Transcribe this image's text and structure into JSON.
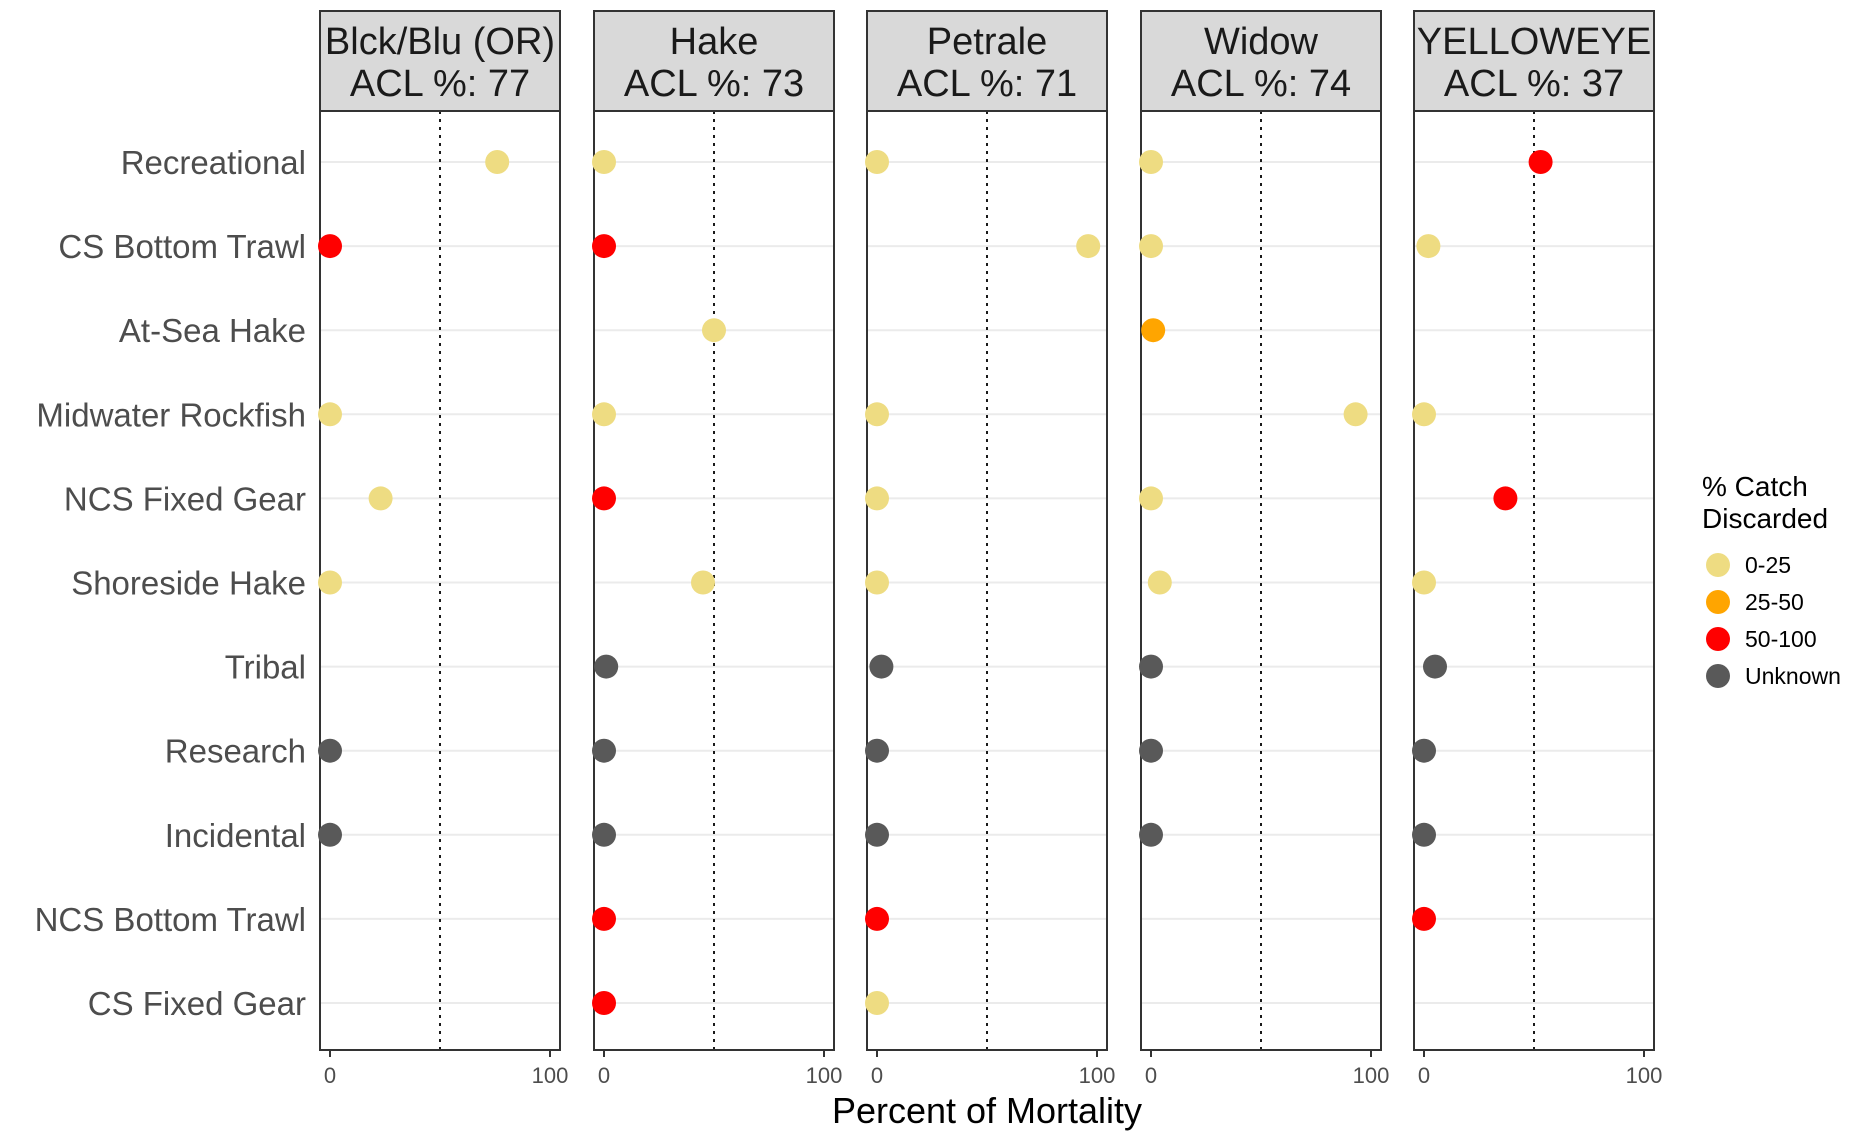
{
  "chart_data": {
    "type": "scatter",
    "xlabel": "Percent of Mortality",
    "xlim": [
      0,
      100
    ],
    "xticks": [
      "0",
      "100"
    ],
    "reference_line_x": 50,
    "grid": true,
    "legend_position": "right",
    "categories": [
      "Recreational",
      "CS Bottom Trawl",
      "At-Sea Hake",
      "Midwater Rockfish",
      "NCS Fixed Gear",
      "Shoreside Hake",
      "Tribal",
      "Research",
      "Incidental",
      "NCS Bottom Trawl",
      "CS Fixed Gear"
    ],
    "legend": {
      "title_lines": [
        "% Catch",
        "Discarded"
      ],
      "items": [
        {
          "key": "0-25",
          "label": "0-25",
          "color": "#EEDC82"
        },
        {
          "key": "25-50",
          "label": "25-50",
          "color": "#FFA500"
        },
        {
          "key": "50-100",
          "label": "50-100",
          "color": "#FF0000"
        },
        {
          "key": "Unknown",
          "label": "Unknown",
          "color": "#595959"
        }
      ]
    },
    "panels": [
      {
        "title_lines": [
          "Blck/Blu (OR)",
          "ACL %: 77"
        ],
        "points": [
          {
            "category": "Recreational",
            "x": 76,
            "discard": "0-25"
          },
          {
            "category": "CS Bottom Trawl",
            "x": 0,
            "discard": "50-100"
          },
          {
            "category": "Midwater Rockfish",
            "x": 0,
            "discard": "0-25"
          },
          {
            "category": "NCS Fixed Gear",
            "x": 23,
            "discard": "0-25"
          },
          {
            "category": "Shoreside Hake",
            "x": 0,
            "discard": "0-25"
          },
          {
            "category": "Research",
            "x": 0,
            "discard": "Unknown"
          },
          {
            "category": "Incidental",
            "x": 0,
            "discard": "Unknown"
          }
        ]
      },
      {
        "title_lines": [
          "Hake",
          "ACL %: 73"
        ],
        "points": [
          {
            "category": "Recreational",
            "x": 0,
            "discard": "0-25"
          },
          {
            "category": "CS Bottom Trawl",
            "x": 0,
            "discard": "50-100"
          },
          {
            "category": "At-Sea Hake",
            "x": 50,
            "discard": "0-25"
          },
          {
            "category": "Midwater Rockfish",
            "x": 0,
            "discard": "0-25"
          },
          {
            "category": "NCS Fixed Gear",
            "x": 0,
            "discard": "50-100"
          },
          {
            "category": "Shoreside Hake",
            "x": 45,
            "discard": "0-25"
          },
          {
            "category": "Tribal",
            "x": 1,
            "discard": "Unknown"
          },
          {
            "category": "Research",
            "x": 0,
            "discard": "Unknown"
          },
          {
            "category": "Incidental",
            "x": 0,
            "discard": "Unknown"
          },
          {
            "category": "NCS Bottom Trawl",
            "x": 0,
            "discard": "50-100"
          },
          {
            "category": "CS Fixed Gear",
            "x": 0,
            "discard": "50-100"
          }
        ]
      },
      {
        "title_lines": [
          "Petrale",
          "ACL %: 71"
        ],
        "points": [
          {
            "category": "Recreational",
            "x": 0,
            "discard": "0-25"
          },
          {
            "category": "CS Bottom Trawl",
            "x": 96,
            "discard": "0-25"
          },
          {
            "category": "Midwater Rockfish",
            "x": 0,
            "discard": "0-25"
          },
          {
            "category": "NCS Fixed Gear",
            "x": 0,
            "discard": "0-25"
          },
          {
            "category": "Shoreside Hake",
            "x": 0,
            "discard": "0-25"
          },
          {
            "category": "Tribal",
            "x": 2,
            "discard": "Unknown"
          },
          {
            "category": "Research",
            "x": 0,
            "discard": "Unknown"
          },
          {
            "category": "Incidental",
            "x": 0,
            "discard": "Unknown"
          },
          {
            "category": "NCS Bottom Trawl",
            "x": 0,
            "discard": "50-100"
          },
          {
            "category": "CS Fixed Gear",
            "x": 0,
            "discard": "0-25"
          }
        ]
      },
      {
        "title_lines": [
          "Widow",
          "ACL %: 74"
        ],
        "points": [
          {
            "category": "Recreational",
            "x": 0,
            "discard": "0-25"
          },
          {
            "category": "CS Bottom Trawl",
            "x": 0,
            "discard": "0-25"
          },
          {
            "category": "At-Sea Hake",
            "x": 1,
            "discard": "25-50"
          },
          {
            "category": "Midwater Rockfish",
            "x": 93,
            "discard": "0-25"
          },
          {
            "category": "NCS Fixed Gear",
            "x": 0,
            "discard": "0-25"
          },
          {
            "category": "Shoreside Hake",
            "x": 4,
            "discard": "0-25"
          },
          {
            "category": "Tribal",
            "x": 0,
            "discard": "Unknown"
          },
          {
            "category": "Research",
            "x": 0,
            "discard": "Unknown"
          },
          {
            "category": "Incidental",
            "x": 0,
            "discard": "Unknown"
          }
        ]
      },
      {
        "title_lines": [
          "YELLOWEYE",
          "ACL %: 37"
        ],
        "points": [
          {
            "category": "Recreational",
            "x": 53,
            "discard": "50-100"
          },
          {
            "category": "CS Bottom Trawl",
            "x": 2,
            "discard": "0-25"
          },
          {
            "category": "Midwater Rockfish",
            "x": 0,
            "discard": "0-25"
          },
          {
            "category": "NCS Fixed Gear",
            "x": 37,
            "discard": "50-100"
          },
          {
            "category": "Shoreside Hake",
            "x": 0,
            "discard": "0-25"
          },
          {
            "category": "Tribal",
            "x": 5,
            "discard": "Unknown"
          },
          {
            "category": "Research",
            "x": 0,
            "discard": "Unknown"
          },
          {
            "category": "Incidental",
            "x": 0,
            "discard": "Unknown"
          },
          {
            "category": "NCS Bottom Trawl",
            "x": 0,
            "discard": "50-100"
          }
        ]
      }
    ]
  }
}
